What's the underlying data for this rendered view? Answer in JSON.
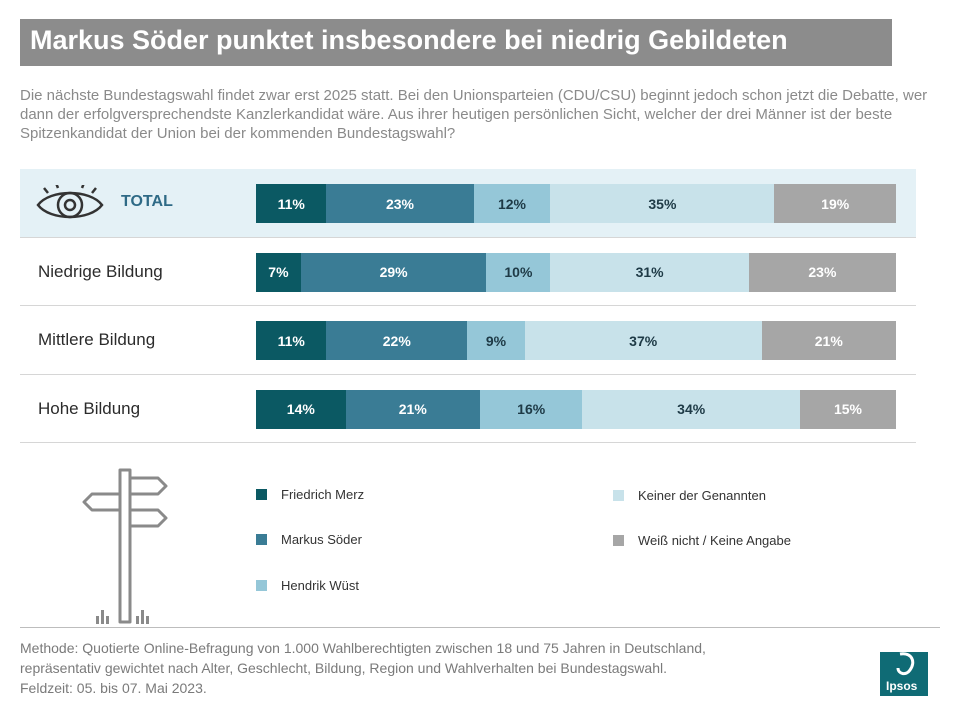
{
  "header": {
    "title": "Markus Söder punktet insbesondere bei niedrig Gebildeten",
    "subtitle": "Die nächste Bundestagswahl findet zwar erst 2025 statt. Bei den Unionsparteien (CDU/CSU) beginnt jedoch schon jetzt die Debatte, wer dann der erfolgversprechendste Kanzlerkandidat wäre. Aus ihrer heutigen persönlichen Sicht, welcher der drei Männer ist der beste Spitzenkandidat der Union bei der kommenden Bundestagswahl?"
  },
  "chart_data": {
    "type": "bar",
    "stacked": true,
    "orientation": "horizontal",
    "unit": "%",
    "categories": [
      "TOTAL",
      "Niedrige Bildung",
      "Mittlere Bildung",
      "Hohe Bildung"
    ],
    "series": [
      {
        "name": "Friedrich Merz",
        "color": "#0b5963",
        "text_color": "#ffffff",
        "values": [
          11,
          7,
          11,
          14
        ]
      },
      {
        "name": "Markus Söder",
        "color": "#3a7c95",
        "text_color": "#ffffff",
        "values": [
          23,
          29,
          22,
          21
        ]
      },
      {
        "name": "Hendrik Wüst",
        "color": "#95c7d8",
        "text_color": "#1e3a46",
        "values": [
          12,
          10,
          9,
          16
        ]
      },
      {
        "name": "Keiner der Genannten",
        "color": "#c8e2ea",
        "text_color": "#1e3a46",
        "values": [
          35,
          31,
          37,
          34
        ]
      },
      {
        "name": "Weiß nicht / Keine Angabe",
        "color": "#a6a6a6",
        "text_color": "#ffffff",
        "values": [
          19,
          23,
          21,
          15
        ]
      }
    ],
    "labels": [
      [
        "11%",
        "23%",
        "12%",
        "35%",
        "19%"
      ],
      [
        "7%",
        "29%",
        "10%",
        "31%",
        "23%"
      ],
      [
        "11%",
        "22%",
        "9%",
        "37%",
        "21%"
      ],
      [
        "14%",
        "21%",
        "16%",
        "34%",
        "15%"
      ]
    ],
    "highlight_category": "TOTAL",
    "highlight_color": "#e4f1f6"
  },
  "footer": {
    "line1": "Methode: Quotierte Online-Befragung  von 1.000 Wahlberechtigten  zwischen 18 und 75 Jahren in Deutschland,",
    "line2": "repräsentativ  gewichtet  nach Alter, Geschlecht,  Bildung,  Region  und Wahlverhalten  bei Bundestagswahl.",
    "line3": "Feldzeit: 05. bis 07. Mai 2023."
  },
  "logo": {
    "text": "Ipsos",
    "color": "#0f6b75"
  },
  "icons": {
    "total": "eye-icon",
    "decoration": "signpost-icon"
  }
}
